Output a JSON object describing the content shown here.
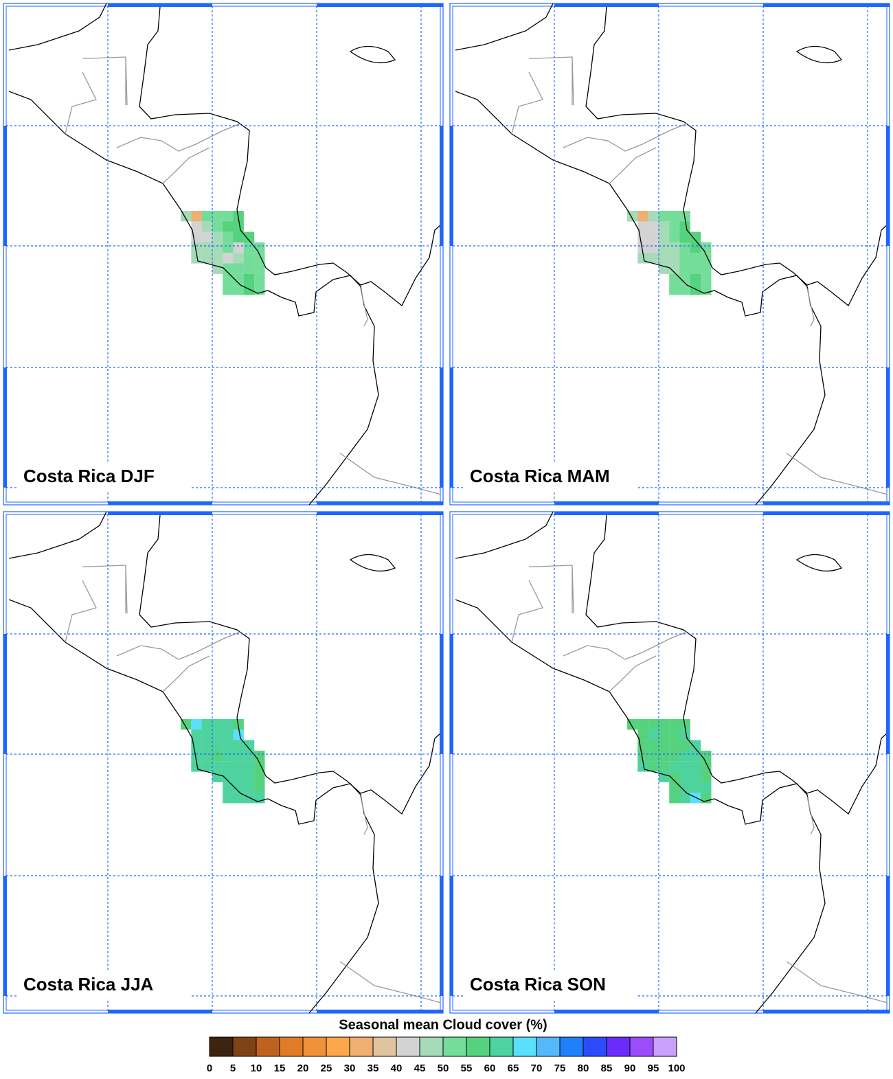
{
  "panels": [
    {
      "title": "Costa Rica DJF",
      "values": [
        [
          47,
          32,
          52,
          52,
          52,
          57,
          null,
          null
        ],
        [
          null,
          42,
          47,
          52,
          57,
          57,
          null,
          null
        ],
        [
          null,
          42,
          42,
          47,
          52,
          57,
          57,
          null
        ],
        [
          null,
          47,
          47,
          47,
          52,
          42,
          52,
          52
        ],
        [
          null,
          47,
          47,
          47,
          42,
          47,
          52,
          52
        ],
        [
          null,
          null,
          null,
          47,
          52,
          52,
          52,
          52
        ],
        [
          null,
          null,
          null,
          null,
          52,
          52,
          57,
          52
        ],
        [
          null,
          null,
          null,
          null,
          52,
          52,
          57,
          52
        ]
      ]
    },
    {
      "title": "Costa Rica MAM",
      "values": [
        [
          47,
          32,
          47,
          52,
          52,
          52,
          null,
          null
        ],
        [
          null,
          42,
          42,
          47,
          52,
          57,
          null,
          null
        ],
        [
          null,
          42,
          42,
          47,
          52,
          57,
          57,
          null
        ],
        [
          null,
          42,
          42,
          47,
          47,
          52,
          57,
          52
        ],
        [
          null,
          47,
          47,
          47,
          47,
          52,
          52,
          52
        ],
        [
          null,
          null,
          null,
          47,
          47,
          52,
          52,
          52
        ],
        [
          null,
          null,
          null,
          null,
          52,
          52,
          57,
          52
        ],
        [
          null,
          null,
          null,
          null,
          52,
          52,
          57,
          52
        ]
      ]
    },
    {
      "title": "Costa Rica JJA",
      "values": [
        [
          57,
          67,
          62,
          62,
          62,
          57,
          null,
          null
        ],
        [
          null,
          62,
          62,
          62,
          62,
          67,
          null,
          null
        ],
        [
          null,
          62,
          62,
          62,
          62,
          62,
          62,
          null
        ],
        [
          null,
          62,
          62,
          57,
          62,
          62,
          62,
          57
        ],
        [
          null,
          62,
          62,
          62,
          62,
          62,
          62,
          57
        ],
        [
          null,
          null,
          null,
          62,
          62,
          62,
          62,
          57
        ],
        [
          null,
          null,
          null,
          null,
          62,
          62,
          62,
          57
        ],
        [
          null,
          null,
          null,
          null,
          62,
          62,
          62,
          62
        ]
      ]
    },
    {
      "title": "Costa Rica SON",
      "values": [
        [
          57,
          57,
          57,
          57,
          57,
          57,
          null,
          null
        ],
        [
          null,
          57,
          62,
          57,
          57,
          62,
          null,
          null
        ],
        [
          null,
          57,
          57,
          57,
          57,
          57,
          62,
          null
        ],
        [
          null,
          57,
          57,
          57,
          57,
          62,
          62,
          57
        ],
        [
          null,
          62,
          57,
          57,
          62,
          62,
          62,
          57
        ],
        [
          null,
          null,
          null,
          62,
          57,
          62,
          62,
          57
        ],
        [
          null,
          null,
          null,
          null,
          57,
          62,
          62,
          62
        ],
        [
          null,
          null,
          null,
          null,
          57,
          62,
          67,
          57
        ]
      ]
    }
  ],
  "colorbar": {
    "title": "Seasonal mean Cloud cover (%)",
    "levels": [
      0,
      5,
      10,
      15,
      20,
      25,
      30,
      35,
      40,
      45,
      50,
      55,
      60,
      65,
      70,
      75,
      80,
      85,
      90,
      95,
      100
    ],
    "colors": [
      "#3d2410",
      "#7e4416",
      "#c0621f",
      "#e07b2a",
      "#f0923a",
      "#fba74a",
      "#f0b070",
      "#e0c49e",
      "#d3d3d3",
      "#a5dbb7",
      "#75dd9a",
      "#55d27e",
      "#4ed29e",
      "#5ae0fb",
      "#55b8fb",
      "#1e80fb",
      "#2c4bfb",
      "#6a2bfb",
      "#9b4dfb",
      "#c9a0fb"
    ]
  }
}
